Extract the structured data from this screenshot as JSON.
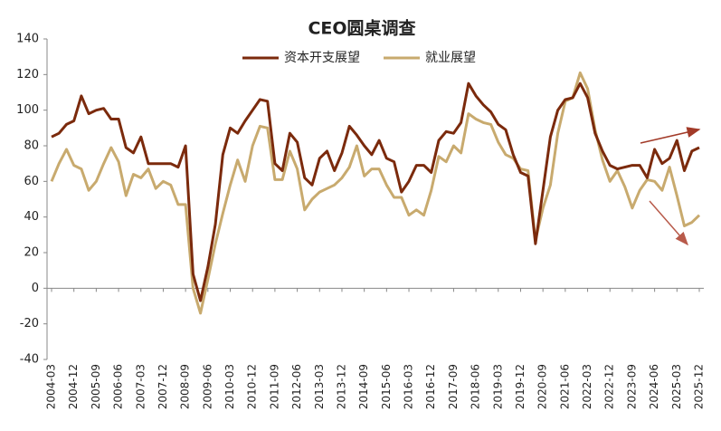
{
  "chart_data": {
    "type": "line",
    "title": "CEO圆桌调查",
    "categories": [
      "2004-03",
      null,
      null,
      "2004-12",
      null,
      null,
      "2005-09",
      null,
      null,
      "2006-06",
      null,
      null,
      "2007-03",
      null,
      null,
      "2007-12",
      null,
      null,
      "2008-09",
      null,
      null,
      "2009-06",
      null,
      null,
      "2010-03",
      null,
      null,
      "2010-12",
      null,
      null,
      "2011-09",
      null,
      null,
      "2012-06",
      null,
      null,
      "2013-03",
      null,
      null,
      "2013-12",
      null,
      null,
      "2014-09",
      null,
      null,
      "2015-06",
      null,
      null,
      "2016-03",
      null,
      null,
      "2016-12",
      null,
      null,
      "2017-09",
      null,
      null,
      "2018-06",
      null,
      null,
      "2019-03",
      null,
      null,
      "2019-12",
      null,
      null,
      "2020-09",
      null,
      null,
      "2021-06",
      null,
      null,
      "2022-03",
      null,
      null,
      "2022-12",
      null,
      null,
      "2023-09",
      null,
      null,
      "2024-06",
      null,
      null,
      "2025-03",
      null,
      null,
      "2025-12"
    ],
    "series": [
      {
        "name": "资本开支展望",
        "color": "#7b2a0c",
        "values": [
          85,
          87,
          92,
          94,
          108,
          98,
          100,
          101,
          95,
          95,
          79,
          76,
          85,
          70,
          70,
          70,
          70,
          68,
          80,
          8,
          -7,
          12,
          36,
          75,
          90,
          87,
          94,
          100,
          106,
          105,
          70,
          66,
          87,
          82,
          62,
          58,
          73,
          77,
          66,
          76,
          91,
          86,
          80,
          75,
          83,
          73,
          71,
          54,
          60,
          69,
          69,
          65,
          83,
          88,
          87,
          93,
          115,
          108,
          103,
          99,
          92,
          89,
          75,
          65,
          63,
          25,
          55,
          85,
          100,
          106,
          107,
          115,
          107,
          87,
          77,
          69,
          67,
          68,
          69,
          69,
          62,
          78,
          70,
          73,
          83,
          66,
          77,
          79
        ]
      },
      {
        "name": "就业展望",
        "color": "#c8aa6e",
        "values": [
          60,
          70,
          78,
          69,
          67,
          55,
          60,
          70,
          79,
          71,
          52,
          64,
          62,
          67,
          56,
          60,
          58,
          47,
          47,
          0,
          -14,
          5,
          25,
          42,
          58,
          72,
          60,
          80,
          91,
          90,
          61,
          61,
          77,
          67,
          44,
          50,
          54,
          56,
          58,
          62,
          68,
          80,
          63,
          67,
          67,
          58,
          51,
          51,
          41,
          44,
          41,
          55,
          74,
          71,
          80,
          76,
          98,
          95,
          93,
          92,
          82,
          75,
          73,
          67,
          66,
          27,
          45,
          58,
          87,
          105,
          107,
          121,
          112,
          89,
          72,
          60,
          66,
          57,
          45,
          55,
          61,
          60,
          55,
          68,
          52,
          35,
          37,
          41
        ]
      }
    ],
    "ylim": [
      -40,
      140
    ],
    "yticks": [
      -40,
      -20,
      0,
      20,
      40,
      60,
      80,
      100,
      120,
      140
    ]
  }
}
